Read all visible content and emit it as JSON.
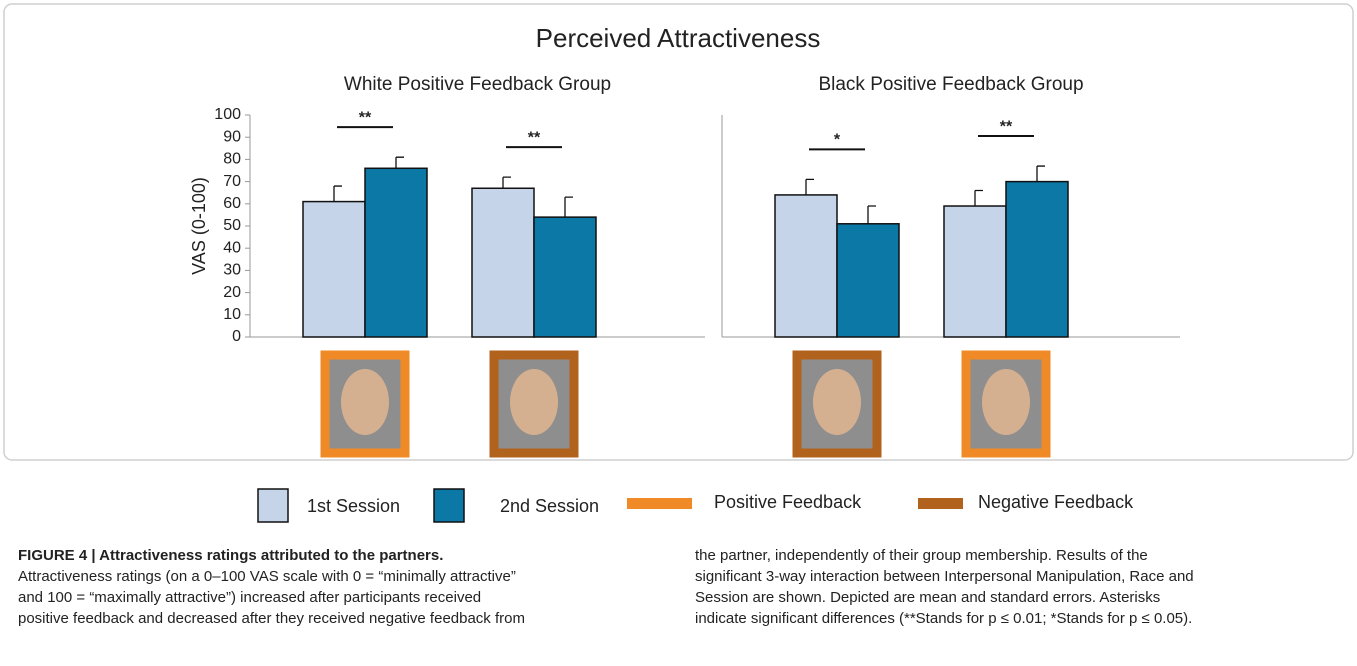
{
  "title": "Perceived Attractiveness",
  "chart_data": [
    {
      "type": "bar",
      "subtitle": "White Positive Feedback Group",
      "y_label": "VAS (0-100)",
      "categories": [
        null,
        null
      ],
      "category_colors": [
        "#f08a26",
        "#b1621c"
      ],
      "series": [
        {
          "name": "1st Session",
          "color": "#c6d4ea",
          "values": [
            61,
            67
          ],
          "errors": [
            7,
            5
          ]
        },
        {
          "name": "2nd Session",
          "color": "#0b78a6",
          "values": [
            76,
            54
          ],
          "errors": [
            5,
            9
          ]
        }
      ],
      "annotations": [
        "**",
        "**"
      ],
      "ylim": [
        0,
        100
      ],
      "yticks": [
        0,
        10,
        20,
        30,
        40,
        50,
        60,
        70,
        80,
        90,
        100
      ]
    },
    {
      "type": "bar",
      "subtitle": "Black Positive Feedback Group",
      "categories": [
        null,
        null
      ],
      "category_colors": [
        "#b1621c",
        "#f08a26"
      ],
      "series": [
        {
          "name": "1st Session",
          "color": "#c6d4ea",
          "values": [
            64,
            59
          ],
          "errors": [
            7,
            7
          ]
        },
        {
          "name": "2nd Session",
          "color": "#0b78a6",
          "values": [
            51,
            70
          ],
          "errors": [
            8,
            7
          ]
        }
      ],
      "annotations": [
        "*",
        "**"
      ],
      "ylim": [
        0,
        100
      ]
    }
  ],
  "legend_extra": [
    {
      "name": "Positive Feedback",
      "color": "#f08a26"
    },
    {
      "name": "Negative Feedback",
      "color": "#b1621c"
    }
  ],
  "caption": {
    "title": "FIGURE 4 | Attractiveness ratings attributed to the partners.",
    "left": [
      "Attractiveness ratings (on a 0–100 VAS scale with 0 = “minimally attractive”",
      "and 100 = “maximally attractive”) increased after participants received",
      "positive feedback and decreased after they received negative feedback from"
    ],
    "right": [
      "the partner, independently of their group membership. Results of the",
      "significant 3-way interaction between Interpersonal Manipulation, Race and",
      "Session are shown. Depicted are mean and standard errors. Asterisks",
      "indicate significant differences (**Stands for p ≤ 0.01; *Stands for p ≤ 0.05)."
    ]
  }
}
